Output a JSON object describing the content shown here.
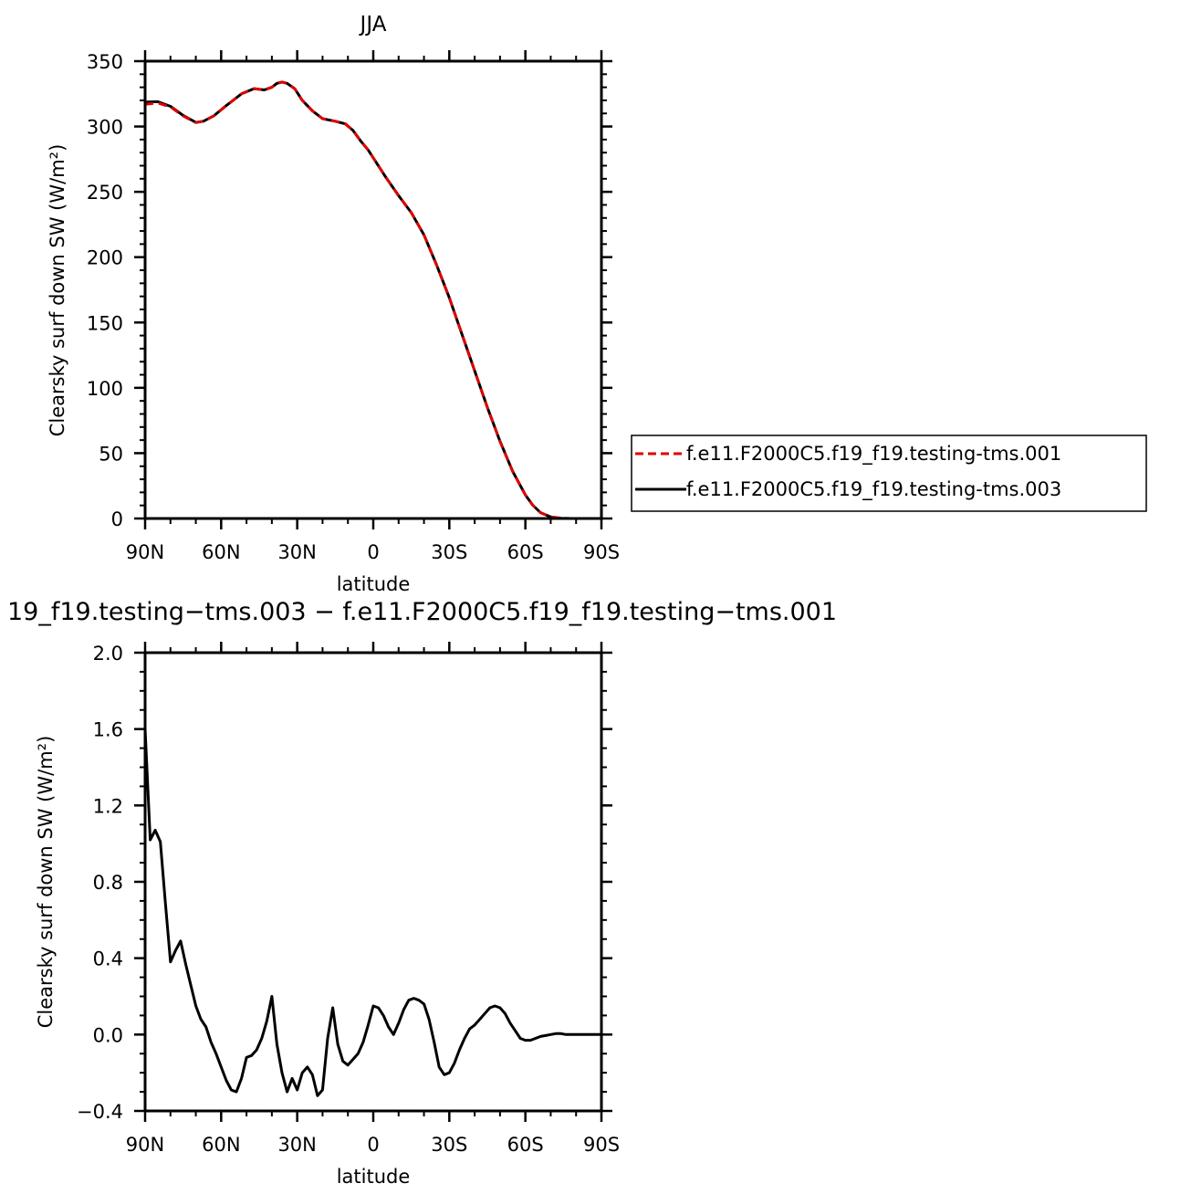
{
  "chart_data": [
    {
      "type": "line",
      "title": "JJA",
      "xlabel": "latitude",
      "ylabel": "Clearsky surf down SW (W/m²)",
      "xlim": [
        -90,
        90
      ],
      "ylim": [
        0,
        350
      ],
      "x_ticks": [
        {
          "value": -90,
          "label": "90N"
        },
        {
          "value": -60,
          "label": "60N"
        },
        {
          "value": -30,
          "label": "30N"
        },
        {
          "value": 0,
          "label": "0"
        },
        {
          "value": 30,
          "label": "30S"
        },
        {
          "value": 60,
          "label": "60S"
        },
        {
          "value": 90,
          "label": "90S"
        }
      ],
      "y_ticks": [
        {
          "value": 0,
          "label": "0"
        },
        {
          "value": 50,
          "label": "50"
        },
        {
          "value": 100,
          "label": "100"
        },
        {
          "value": 150,
          "label": "150"
        },
        {
          "value": 200,
          "label": "200"
        },
        {
          "value": 250,
          "label": "250"
        },
        {
          "value": 300,
          "label": "300"
        },
        {
          "value": 350,
          "label": "350"
        }
      ],
      "legend_position": "right",
      "series": [
        {
          "name": "f.e11.F2000C5.f19_f19.testing-tms.001",
          "color": "#e00000",
          "dash": true,
          "x": [
            -90,
            -85,
            -80,
            -75,
            -70,
            -67,
            -63,
            -58,
            -52,
            -47,
            -43,
            -40,
            -38,
            -36,
            -34,
            -31,
            -28,
            -24,
            -20,
            -15,
            -11,
            -8,
            -5,
            -2,
            0,
            5,
            10,
            15,
            20,
            25,
            30,
            35,
            40,
            45,
            50,
            55,
            60,
            63,
            66,
            70,
            74,
            78,
            82,
            86,
            90
          ],
          "y": [
            317,
            318,
            315,
            308,
            303,
            304,
            308,
            316,
            325,
            329,
            328,
            330,
            333,
            334,
            333,
            329,
            320,
            312,
            306,
            304,
            302,
            297,
            289,
            282,
            276,
            261,
            247,
            234,
            217,
            194,
            169,
            141,
            113,
            85,
            59,
            36,
            18,
            10,
            4.5,
            1.2,
            0.2,
            0,
            0,
            0,
            0
          ]
        },
        {
          "name": "f.e11.F2000C5.f19_f19.testing-tms.003",
          "color": "#000000",
          "dash": false,
          "x": [
            -90,
            -85,
            -80,
            -75,
            -70,
            -67,
            -63,
            -58,
            -52,
            -47,
            -43,
            -40,
            -38,
            -36,
            -34,
            -31,
            -28,
            -24,
            -20,
            -15,
            -11,
            -8,
            -5,
            -2,
            0,
            5,
            10,
            15,
            20,
            25,
            30,
            35,
            40,
            45,
            50,
            55,
            60,
            63,
            66,
            70,
            74,
            78,
            82,
            86,
            90
          ],
          "y": [
            318.6,
            319,
            315.4,
            308.4,
            303.1,
            304,
            308,
            316,
            325,
            329,
            328,
            330,
            333,
            334,
            333,
            329,
            320,
            312,
            306,
            304,
            302,
            297,
            289,
            282,
            276,
            261,
            247,
            234,
            217,
            194,
            169,
            141,
            113,
            85,
            59,
            36,
            18,
            10,
            4.5,
            1.2,
            0.2,
            0,
            0,
            0,
            0
          ]
        }
      ]
    },
    {
      "type": "line",
      "title": "19_f19.testing−tms.003 − f.e11.F2000C5.f19_f19.testing−tms.001",
      "xlabel": "latitude",
      "ylabel": "Clearsky surf down SW (W/m²)",
      "xlim": [
        -90,
        90
      ],
      "ylim": [
        -0.4,
        2.0
      ],
      "x_ticks": [
        {
          "value": -90,
          "label": "90N"
        },
        {
          "value": -60,
          "label": "60N"
        },
        {
          "value": -30,
          "label": "30N"
        },
        {
          "value": 0,
          "label": "0"
        },
        {
          "value": 30,
          "label": "30S"
        },
        {
          "value": 60,
          "label": "60S"
        },
        {
          "value": 90,
          "label": "90S"
        }
      ],
      "y_ticks": [
        {
          "value": -0.4,
          "label": "−0.4"
        },
        {
          "value": 0.0,
          "label": "0.0"
        },
        {
          "value": 0.4,
          "label": "0.4"
        },
        {
          "value": 0.8,
          "label": "0.8"
        },
        {
          "value": 1.2,
          "label": "1.2"
        },
        {
          "value": 1.6,
          "label": "1.6"
        },
        {
          "value": 2.0,
          "label": "2.0"
        }
      ],
      "series": [
        {
          "name": "",
          "color": "#000000",
          "dash": false,
          "x": [
            -90,
            -88,
            -86,
            -84,
            -82,
            -80,
            -78,
            -76,
            -74,
            -72,
            -70,
            -68,
            -66,
            -64,
            -62,
            -60,
            -58,
            -56,
            -54,
            -52,
            -50,
            -48,
            -46,
            -44,
            -42,
            -40,
            -38,
            -36,
            -34,
            -32,
            -30,
            -28,
            -26,
            -24,
            -22,
            -20,
            -18,
            -16,
            -14,
            -12,
            -10,
            -8,
            -6,
            -4,
            -2,
            0,
            2,
            4,
            6,
            8,
            10,
            12,
            14,
            16,
            18,
            20,
            22,
            24,
            26,
            28,
            30,
            32,
            34,
            36,
            38,
            40,
            42,
            44,
            46,
            48,
            50,
            52,
            54,
            56,
            58,
            60,
            62,
            64,
            66,
            68,
            70,
            72,
            74,
            76,
            78,
            80,
            82,
            84,
            86,
            88,
            90
          ],
          "y": [
            1.6,
            1.02,
            1.07,
            1.01,
            0.69,
            0.38,
            0.44,
            0.49,
            0.37,
            0.26,
            0.15,
            0.08,
            0.04,
            -0.04,
            -0.1,
            -0.17,
            -0.24,
            -0.29,
            -0.3,
            -0.23,
            -0.12,
            -0.11,
            -0.08,
            -0.02,
            0.07,
            0.2,
            -0.05,
            -0.2,
            -0.3,
            -0.23,
            -0.29,
            -0.2,
            -0.17,
            -0.21,
            -0.32,
            -0.29,
            -0.02,
            0.14,
            -0.05,
            -0.14,
            -0.16,
            -0.13,
            -0.1,
            -0.04,
            0.05,
            0.15,
            0.14,
            0.1,
            0.04,
            0.0,
            0.06,
            0.13,
            0.18,
            0.19,
            0.18,
            0.16,
            0.08,
            -0.04,
            -0.17,
            -0.21,
            -0.2,
            -0.15,
            -0.08,
            -0.02,
            0.03,
            0.05,
            0.08,
            0.11,
            0.14,
            0.15,
            0.14,
            0.11,
            0.06,
            0.02,
            -0.02,
            -0.03,
            -0.03,
            -0.02,
            -0.01,
            -0.005,
            0.0,
            0.005,
            0.005,
            0.0,
            0.0,
            0.0,
            0.0,
            0.0,
            0.0,
            0.0,
            0.0
          ]
        }
      ]
    }
  ]
}
